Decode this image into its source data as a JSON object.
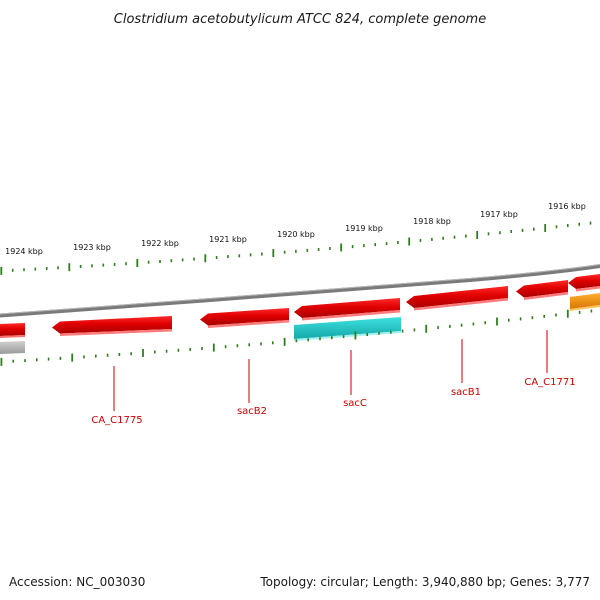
{
  "title": "Clostridium acetobutylicum ATCC 824, complete genome",
  "footer": {
    "accession": "Accession: NC_003030",
    "summary": "Topology: circular; Length: 3,940,880 bp; Genes: 3,777"
  },
  "colors": {
    "tick": "#2e7d1e",
    "backbone": "#8a8a8a",
    "gene_forward": "#e60000",
    "gene_cyan": "#1cc6c6",
    "gene_orange": "#f0900a",
    "gene_gray": "#b0b0b0",
    "label": "#cc0000"
  },
  "scale": {
    "labels": [
      {
        "kbp": 1924,
        "text": "1924 kbp"
      },
      {
        "kbp": 1923,
        "text": "1923 kbp"
      },
      {
        "kbp": 1922,
        "text": "1922 kbp"
      },
      {
        "kbp": 1921,
        "text": "1921 kbp"
      },
      {
        "kbp": 1920,
        "text": "1920 kbp"
      },
      {
        "kbp": 1919,
        "text": "1919 kbp"
      },
      {
        "kbp": 1918,
        "text": "1918 kbp"
      },
      {
        "kbp": 1917,
        "text": "1917 kbp"
      },
      {
        "kbp": 1916,
        "text": "1916 kbp"
      }
    ]
  },
  "genes": [
    {
      "name": "CA_C1775",
      "strand": "reverse",
      "color": "gene_forward",
      "labeled": true
    },
    {
      "name": "sacB2",
      "strand": "reverse",
      "color": "gene_forward",
      "labeled": true
    },
    {
      "name": "sacC",
      "strand": "reverse",
      "color": "gene_forward",
      "labeled": true
    },
    {
      "name": "sacB1",
      "strand": "reverse",
      "color": "gene_forward",
      "labeled": true
    },
    {
      "name": "CA_C1771",
      "strand": "reverse",
      "color": "gene_forward",
      "labeled": true
    }
  ]
}
